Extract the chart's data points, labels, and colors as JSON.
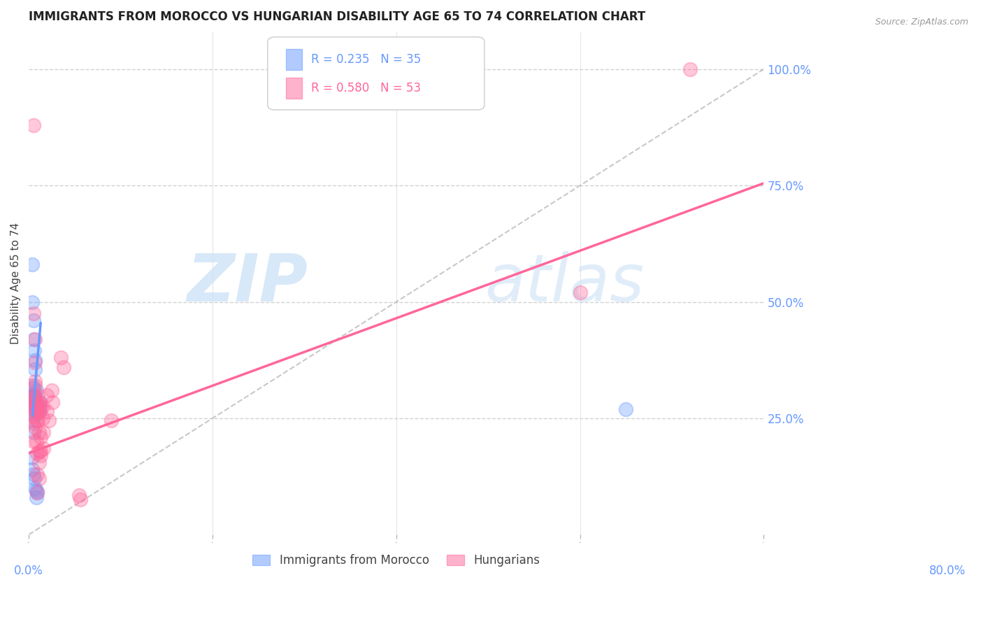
{
  "title": "IMMIGRANTS FROM MOROCCO VS HUNGARIAN DISABILITY AGE 65 TO 74 CORRELATION CHART",
  "source": "Source: ZipAtlas.com",
  "ylabel": "Disability Age 65 to 74",
  "right_ytick_vals": [
    0.25,
    0.5,
    0.75,
    1.0
  ],
  "right_ytick_labels": [
    "25.0%",
    "50.0%",
    "75.0%",
    "100.0%"
  ],
  "xlim": [
    0.0,
    0.8
  ],
  "ylim": [
    0.0,
    1.08
  ],
  "legend_r1": "R = 0.235",
  "legend_n1": "N = 35",
  "legend_r2": "R = 0.580",
  "legend_n2": "N = 53",
  "legend_label1": "Immigrants from Morocco",
  "legend_label2": "Hungarians",
  "blue_color": "#6699ff",
  "pink_color": "#ff6699",
  "blue_scatter": [
    [
      0.005,
      0.28
    ],
    [
      0.005,
      0.22
    ],
    [
      0.006,
      0.295
    ],
    [
      0.004,
      0.26
    ],
    [
      0.006,
      0.275
    ],
    [
      0.007,
      0.28
    ],
    [
      0.008,
      0.285
    ],
    [
      0.004,
      0.245
    ],
    [
      0.004,
      0.3
    ],
    [
      0.006,
      0.3
    ],
    [
      0.008,
      0.31
    ],
    [
      0.004,
      0.58
    ],
    [
      0.004,
      0.5
    ],
    [
      0.005,
      0.46
    ],
    [
      0.005,
      0.42
    ],
    [
      0.006,
      0.395
    ],
    [
      0.007,
      0.375
    ],
    [
      0.007,
      0.355
    ],
    [
      0.004,
      0.32
    ],
    [
      0.005,
      0.315
    ],
    [
      0.01,
      0.275
    ],
    [
      0.01,
      0.26
    ],
    [
      0.012,
      0.285
    ],
    [
      0.012,
      0.27
    ],
    [
      0.004,
      0.165
    ],
    [
      0.004,
      0.14
    ],
    [
      0.005,
      0.13
    ],
    [
      0.006,
      0.12
    ],
    [
      0.007,
      0.1
    ],
    [
      0.008,
      0.095
    ],
    [
      0.008,
      0.08
    ],
    [
      0.009,
      0.09
    ],
    [
      0.65,
      0.27
    ],
    [
      0.004,
      0.295
    ],
    [
      0.004,
      0.295
    ]
  ],
  "pink_scatter": [
    [
      0.005,
      0.29
    ],
    [
      0.005,
      0.27
    ],
    [
      0.005,
      0.265
    ],
    [
      0.005,
      0.255
    ],
    [
      0.005,
      0.24
    ],
    [
      0.006,
      0.295
    ],
    [
      0.006,
      0.285
    ],
    [
      0.006,
      0.3
    ],
    [
      0.007,
      0.32
    ],
    [
      0.007,
      0.33
    ],
    [
      0.007,
      0.37
    ],
    [
      0.007,
      0.42
    ],
    [
      0.007,
      0.23
    ],
    [
      0.008,
      0.28
    ],
    [
      0.008,
      0.265
    ],
    [
      0.008,
      0.245
    ],
    [
      0.008,
      0.2
    ],
    [
      0.009,
      0.175
    ],
    [
      0.009,
      0.13
    ],
    [
      0.009,
      0.09
    ],
    [
      0.01,
      0.3
    ],
    [
      0.01,
      0.28
    ],
    [
      0.01,
      0.265
    ],
    [
      0.01,
      0.245
    ],
    [
      0.011,
      0.22
    ],
    [
      0.011,
      0.18
    ],
    [
      0.011,
      0.155
    ],
    [
      0.011,
      0.12
    ],
    [
      0.012,
      0.285
    ],
    [
      0.012,
      0.275
    ],
    [
      0.012,
      0.265
    ],
    [
      0.013,
      0.21
    ],
    [
      0.013,
      0.18
    ],
    [
      0.013,
      0.17
    ],
    [
      0.015,
      0.275
    ],
    [
      0.015,
      0.25
    ],
    [
      0.016,
      0.22
    ],
    [
      0.016,
      0.185
    ],
    [
      0.02,
      0.3
    ],
    [
      0.02,
      0.265
    ],
    [
      0.022,
      0.245
    ],
    [
      0.025,
      0.31
    ],
    [
      0.026,
      0.285
    ],
    [
      0.035,
      0.38
    ],
    [
      0.038,
      0.36
    ],
    [
      0.055,
      0.085
    ],
    [
      0.056,
      0.075
    ],
    [
      0.005,
      0.2
    ],
    [
      0.09,
      0.245
    ],
    [
      0.005,
      0.475
    ],
    [
      0.005,
      0.88
    ],
    [
      0.6,
      0.52
    ],
    [
      0.72,
      1.0
    ]
  ],
  "blue_line_x": [
    0.004,
    0.013
  ],
  "blue_line_y": [
    0.255,
    0.455
  ],
  "pink_line_x": [
    0.0,
    0.8
  ],
  "pink_line_y": [
    0.175,
    0.755
  ],
  "diagonal_line_x": [
    0.0,
    0.8
  ],
  "diagonal_line_y": [
    0.0,
    1.0
  ],
  "grid_color": "#cccccc",
  "horiz_grid_vals": [
    0.25,
    0.5,
    0.75,
    1.0
  ]
}
